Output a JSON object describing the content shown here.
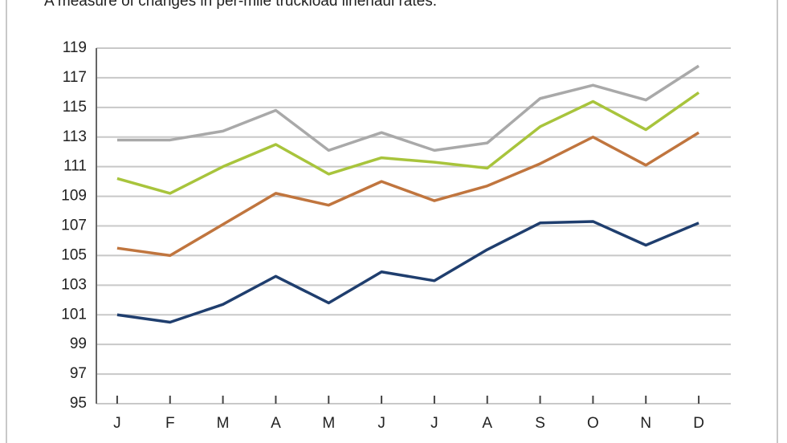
{
  "chart_data": {
    "type": "line",
    "subtitle": "A measure of changes in per-mile truckload linehaul rates.",
    "categories": [
      "J",
      "F",
      "M",
      "A",
      "M",
      "J",
      "J",
      "A",
      "S",
      "O",
      "N",
      "D"
    ],
    "series": [
      {
        "color": "#a9a9a9",
        "values": [
          112.8,
          112.8,
          113.4,
          114.8,
          112.1,
          113.3,
          112.1,
          112.6,
          115.6,
          116.5,
          115.5,
          117.8
        ]
      },
      {
        "color": "#a8c43c",
        "values": [
          110.2,
          109.2,
          111.0,
          112.5,
          110.5,
          111.6,
          111.3,
          110.9,
          113.7,
          115.4,
          113.5,
          116.0
        ]
      },
      {
        "color": "#c0753e",
        "values": [
          105.5,
          105.0,
          107.1,
          109.2,
          108.4,
          110.0,
          108.7,
          109.7,
          111.2,
          113.0,
          111.1,
          113.3
        ]
      },
      {
        "color": "#1f3e6e",
        "values": [
          101.0,
          100.5,
          101.7,
          103.6,
          101.8,
          103.9,
          103.3,
          105.4,
          107.2,
          107.3,
          105.7,
          107.2
        ]
      }
    ],
    "ylim": [
      95,
      119
    ],
    "yticks": [
      95,
      97,
      99,
      101,
      103,
      105,
      107,
      109,
      111,
      113,
      115,
      117,
      119
    ],
    "grid": true
  }
}
